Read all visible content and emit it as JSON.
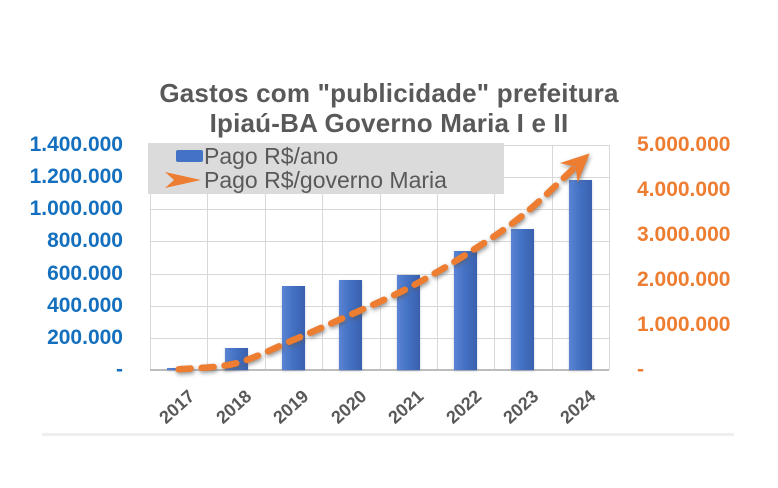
{
  "title": {
    "line1": "Gastos com \"publicidade\" prefeitura",
    "line2": "Ipiaú-BA Governo Maria I e II"
  },
  "legend": {
    "series1_label": "Pago R$/ano",
    "series2_label": "Pago R$/governo Maria"
  },
  "colors": {
    "bar_blue": "#4472c4",
    "line_orange": "#ed7d31",
    "left_axis_blue": "#1470be",
    "right_axis_orange": "#ed7d31",
    "title_gray": "#595959",
    "gridline_gray": "#d8d8d8",
    "legend_bg": "#dbdbdb"
  },
  "chart_data": {
    "type": "bar",
    "subtype": "bar-with-cumulative-dashed-arrow-line",
    "title": "Gastos com \"publicidade\" prefeitura Ipiaú-BA Governo Maria I e II",
    "categories": [
      "2017",
      "2018",
      "2019",
      "2020",
      "2021",
      "2022",
      "2023",
      "2024"
    ],
    "series": [
      {
        "name": "Pago R$/ano",
        "type": "bar",
        "axis": "left",
        "color": "#4472c4",
        "values": [
          15000,
          135000,
          520000,
          560000,
          590000,
          740000,
          880000,
          1180000
        ]
      },
      {
        "name": "Pago R$/governo Maria",
        "type": "line",
        "axis": "right",
        "color": "#ed7d31",
        "line_style": "dashed, arrow end",
        "values": [
          15000,
          150000,
          670000,
          1230000,
          1820000,
          2560000,
          3440000,
          4620000
        ]
      }
    ],
    "left_axis": {
      "min": 0,
      "max": 1400000,
      "tick_labels": [
        "1.400.000",
        "1.200.000",
        "1.000.000",
        "800.000",
        "600.000",
        "400.000",
        "200.000",
        "-"
      ],
      "tick_values": [
        1400000,
        1200000,
        1000000,
        800000,
        600000,
        400000,
        200000,
        0
      ]
    },
    "right_axis": {
      "min": 0,
      "max": 5000000,
      "tick_labels": [
        "5.000.000",
        "4.000.000",
        "3.000.000",
        "2.000.000",
        "1.000.000",
        "-"
      ],
      "tick_values": [
        5000000,
        4000000,
        3000000,
        2000000,
        1000000,
        0
      ]
    },
    "grid": true,
    "legend_position": "top-left overlay inside plot"
  }
}
